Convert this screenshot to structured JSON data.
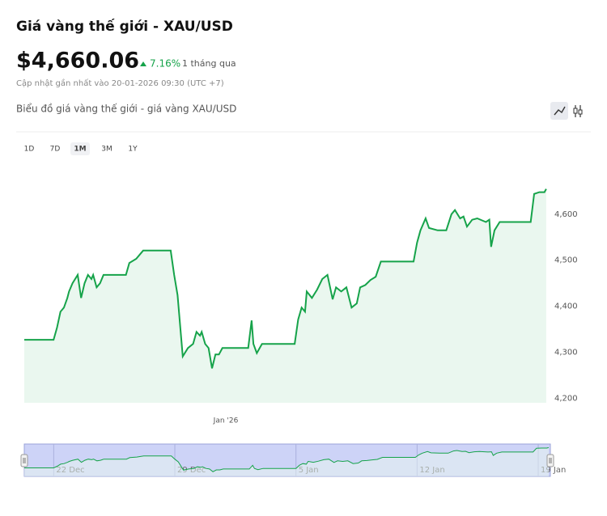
{
  "header": {
    "title": "Giá vàng thế giới - XAU/USD",
    "price": "$4,660.06",
    "change": "7.16%",
    "period": "1 tháng qua",
    "updated": "Cập nhật gần nhất vào 20-01-2026 09:30 (UTC +7)",
    "chart_heading": "Biểu đồ giá vàng thế giới - giá vàng XAU/USD"
  },
  "ranges": {
    "buttons": [
      "1D",
      "7D",
      "1M",
      "3M",
      "1Y"
    ],
    "active": 2
  },
  "chart_data": {
    "type": "area",
    "x": [
      -11.7,
      -10.0,
      -9.8,
      -9.6,
      -9.4,
      -9.2,
      -9.1,
      -8.9,
      -8.6,
      -8.4,
      -8.2,
      -8.0,
      -7.8,
      -7.7,
      -7.5,
      -7.3,
      -7.1,
      -5.8,
      -5.6,
      -5.2,
      -4.8,
      -3.2,
      -3.0,
      -2.8,
      -2.5,
      -2.2,
      -1.9,
      -1.7,
      -1.5,
      -1.4,
      -1.2,
      -1.0,
      -0.8,
      -0.6,
      -0.4,
      -0.2,
      1.3,
      1.5,
      1.6,
      1.8,
      2.1,
      4.0,
      4.2,
      4.4,
      4.6,
      4.7,
      5.0,
      5.3,
      5.6,
      5.9,
      6.2,
      6.4,
      6.7,
      7.0,
      7.3,
      7.6,
      7.8,
      8.1,
      8.4,
      8.7,
      9.0,
      10.9,
      11.1,
      11.3,
      11.6,
      11.8,
      12.3,
      12.8,
      13.1,
      13.3,
      13.6,
      13.8,
      14.0,
      14.3,
      14.6,
      15.1,
      15.3,
      15.4,
      15.6,
      15.9,
      17.7,
      17.9,
      18.2,
      18.5,
      18.6
    ],
    "values": [
      4327,
      4327,
      4353,
      4388,
      4397,
      4418,
      4432,
      4450,
      4468,
      4418,
      4450,
      4468,
      4459,
      4468,
      4441,
      4450,
      4468,
      4468,
      4494,
      4503,
      4521,
      4521,
      4468,
      4424,
      4291,
      4309,
      4318,
      4344,
      4336,
      4344,
      4318,
      4309,
      4265,
      4295,
      4295,
      4309,
      4309,
      4369,
      4318,
      4298,
      4318,
      4318,
      4371,
      4397,
      4388,
      4432,
      4418,
      4436,
      4459,
      4468,
      4415,
      4441,
      4432,
      4441,
      4397,
      4406,
      4441,
      4446,
      4457,
      4464,
      4497,
      4497,
      4538,
      4565,
      4591,
      4570,
      4565,
      4565,
      4600,
      4609,
      4591,
      4595,
      4573,
      4588,
      4591,
      4583,
      4588,
      4529,
      4565,
      4583,
      4583,
      4644,
      4648,
      4648,
      4655
    ],
    "color": "#16a34a",
    "fill_color": "#eaf7ef",
    "xlim": [
      -11.7,
      18.7
    ],
    "xticks": [
      {
        "value": 0,
        "label": "Jan '26"
      }
    ],
    "ylim": [
      4190,
      4700
    ],
    "yticks": [
      {
        "value": 4200,
        "label": "4,200"
      },
      {
        "value": 4300,
        "label": "4,300"
      },
      {
        "value": 4400,
        "label": "4,400"
      },
      {
        "value": 4500,
        "label": "4,500"
      },
      {
        "value": 4600,
        "label": "4,600"
      }
    ],
    "navigator_xticks": [
      {
        "value": -10,
        "label": "22 Dec"
      },
      {
        "value": -3,
        "label": "29 Dec"
      },
      {
        "value": 4,
        "label": "5 Jan"
      },
      {
        "value": 11,
        "label": "12 Jan"
      },
      {
        "value": 18,
        "label": "19 Jan"
      }
    ]
  }
}
